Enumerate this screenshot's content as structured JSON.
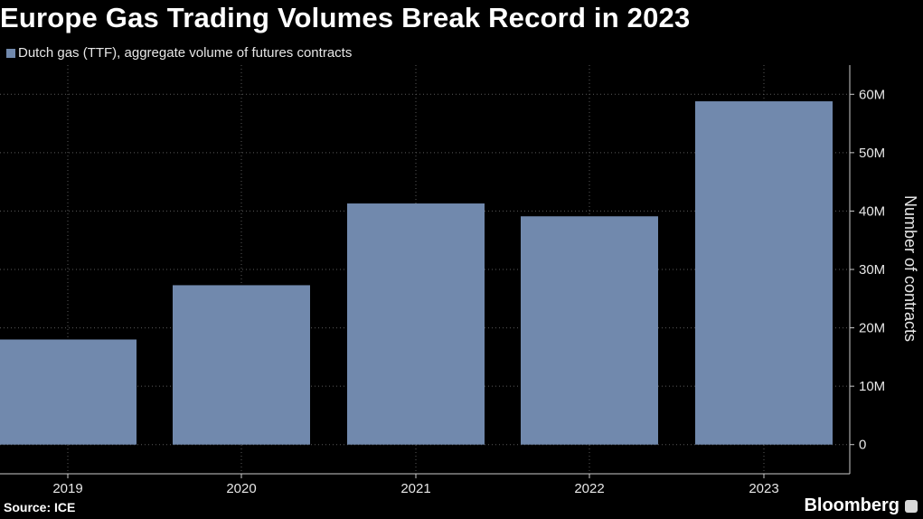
{
  "title": "Europe Gas Trading Volumes Break Record in 2023",
  "legend": {
    "label": "Dutch gas (TTF), aggregate volume of futures contracts"
  },
  "source": "Source: ICE",
  "brand": "Bloomberg",
  "colors": {
    "background": "#000000",
    "bar": "#7189ad",
    "grid": "#5a5a5a",
    "axis": "#cccccc"
  },
  "chart_data": {
    "type": "bar",
    "title": "Europe Gas Trading Volumes Break Record in 2023",
    "categories": [
      "2019",
      "2020",
      "2021",
      "2022",
      "2023"
    ],
    "series": [
      {
        "name": "Dutch gas (TTF), aggregate volume of futures contracts",
        "values": [
          18,
          27.3,
          41.3,
          39.1,
          58.8
        ]
      }
    ],
    "value_unit": "M",
    "xlabel": "",
    "ylabel": "Number of contracts",
    "ylim": [
      -5,
      65
    ],
    "yticks": [
      0,
      10,
      20,
      30,
      40,
      50,
      60
    ],
    "ytick_labels": [
      "0",
      "10M",
      "20M",
      "30M",
      "40M",
      "50M",
      "60M"
    ],
    "grid": true,
    "y_axis_side": "right"
  }
}
